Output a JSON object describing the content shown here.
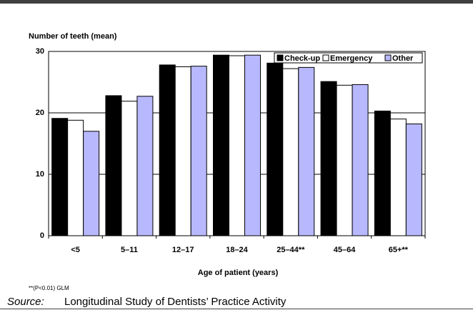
{
  "chart_data": {
    "type": "bar",
    "y_label": "Number of teeth (mean)",
    "x_label": "Age of patient (years)",
    "footnote": "**(P<0.01) GLM",
    "source_label": "Source:",
    "source_text": "Longitudinal Study of Dentists’ Practice Activity",
    "categories": [
      "<5",
      "5–11",
      "12–17",
      "18–24",
      "25–44**",
      "45–64",
      "65+**"
    ],
    "series": [
      {
        "name": "Check-up",
        "color": "#000000",
        "values": [
          19.1,
          22.8,
          27.8,
          29.4,
          28.1,
          25.1,
          20.3
        ]
      },
      {
        "name": "Emergency",
        "color": "#ffffff",
        "values": [
          18.8,
          21.9,
          27.5,
          29.3,
          27.2,
          24.5,
          19.0
        ]
      },
      {
        "name": "Other",
        "color": "#b8b8ff",
        "values": [
          17.0,
          22.7,
          27.6,
          29.4,
          27.4,
          24.6,
          18.2
        ]
      }
    ],
    "ylim": [
      0,
      30
    ],
    "yticks": [
      0,
      10,
      20,
      30
    ],
    "grid": true,
    "legend": "upper right"
  }
}
